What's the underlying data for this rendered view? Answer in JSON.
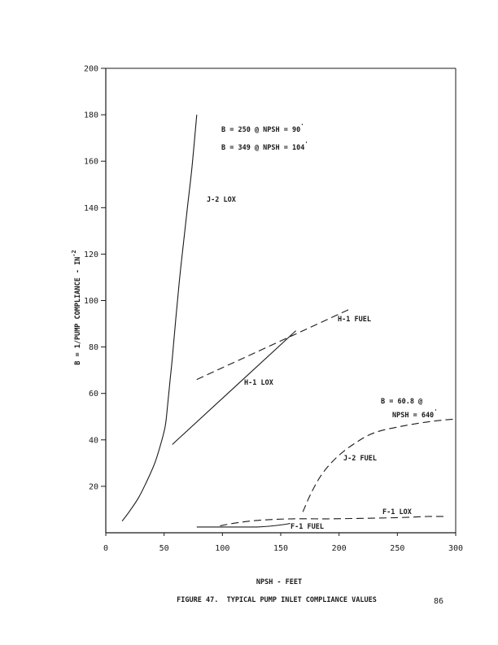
{
  "page": {
    "caption": "FIGURE 47.  TYPICAL PUMP INLET COMPLIANCE VALUES",
    "page_number": "86"
  },
  "chart_data": {
    "type": "line",
    "title": "",
    "xlabel": "NPSH - FEET",
    "ylabel": "B = 1/PUMP COMPLIANCE - IN",
    "ylabel_superscript": "-2",
    "xlim": [
      0,
      300
    ],
    "ylim": [
      0,
      200
    ],
    "x_ticks": [
      0,
      50,
      100,
      150,
      200,
      250,
      300
    ],
    "y_ticks": [
      20,
      40,
      60,
      80,
      100,
      120,
      140,
      160,
      180,
      200
    ],
    "grid": false,
    "series": [
      {
        "name": "J-2 LOX",
        "style": "solid",
        "x": [
          14,
          20,
          28,
          35,
          42,
          47,
          51,
          53,
          55,
          57,
          60,
          63,
          66,
          70,
          74,
          78
        ],
        "y": [
          5,
          9,
          15,
          22,
          30,
          38,
          46,
          55,
          65,
          75,
          92,
          108,
          122,
          140,
          158,
          180
        ]
      },
      {
        "name": "H-1 FUEL",
        "style": "dashed",
        "x": [
          78,
          208
        ],
        "y": [
          66,
          96
        ]
      },
      {
        "name": "H-1 LOX",
        "style": "solid",
        "x": [
          57,
          163
        ],
        "y": [
          38,
          87
        ]
      },
      {
        "name": "J-2 FUEL",
        "style": "dashed",
        "x": [
          169,
          176,
          185,
          197,
          212,
          230,
          255,
          280,
          300
        ],
        "y": [
          9,
          17,
          25,
          32,
          38,
          43,
          46,
          48,
          49
        ]
      },
      {
        "name": "F-1 LOX",
        "style": "dashed",
        "x": [
          98,
          115,
          135,
          160,
          190,
          220,
          250,
          275,
          293
        ],
        "y": [
          3,
          4.5,
          5.5,
          6,
          6,
          6.2,
          6.5,
          7,
          7
        ]
      },
      {
        "name": "F-1 FUEL",
        "style": "solid",
        "x": [
          78,
          100,
          115,
          130,
          140,
          152,
          158
        ],
        "y": [
          2.5,
          2.5,
          2.5,
          2.5,
          2.8,
          3.5,
          4
        ]
      }
    ],
    "annotations": [
      {
        "lines": [
          "B = 250 @ NPSH =  90",
          "B = 349 @ NPSH = 104"
        ],
        "superscripts": [
          "'",
          "'"
        ],
        "x": 100,
        "y": 170
      },
      {
        "lines": [
          "B = 60.8 @",
          "NPSH = 640"
        ],
        "superscripts": [
          "",
          "'"
        ],
        "x": 237,
        "y": 56
      }
    ]
  }
}
